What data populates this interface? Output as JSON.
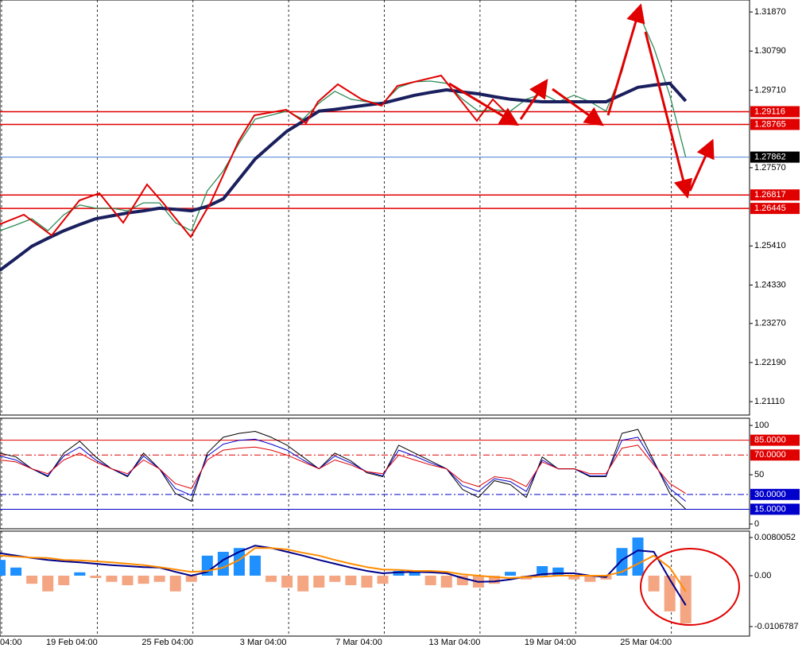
{
  "chart_data": [
    {
      "type": "line",
      "xlim": [
        0,
        47
      ],
      "ylim": [
        1.2074,
        1.322
      ],
      "yticks": [
        {
          "value": 1.3187,
          "label": "1.31870"
        },
        {
          "value": 1.3079,
          "label": "1.30790"
        },
        {
          "value": 1.2971,
          "label": "1.29710"
        },
        {
          "value": 1.2757,
          "label": "1.27570"
        },
        {
          "value": 1.2541,
          "label": "1.25410"
        },
        {
          "value": 1.2433,
          "label": "1.24330"
        },
        {
          "value": 1.2327,
          "label": "1.23270"
        },
        {
          "value": 1.2219,
          "label": "1.22190"
        },
        {
          "value": 1.2111,
          "label": "1.21110"
        }
      ],
      "x": [
        0,
        1,
        2,
        3,
        4,
        5,
        6,
        7,
        8,
        9,
        10,
        11,
        12,
        13,
        14,
        15,
        16,
        17,
        18,
        19,
        20,
        21,
        22,
        23,
        24,
        25,
        26,
        27,
        28,
        29,
        30,
        31,
        32,
        33,
        34,
        35,
        36,
        37,
        38,
        39,
        40,
        41,
        42,
        43
      ],
      "series": [
        {
          "color": "#2e8b57",
          "width": 1.3,
          "values": [
            1.2583,
            1.2599,
            1.2616,
            1.2583,
            1.2627,
            1.2654,
            1.2645,
            1.2645,
            1.2638,
            1.266,
            1.266,
            1.2605,
            1.2583,
            1.2693,
            1.2748,
            1.2825,
            1.2891,
            1.2902,
            1.2913,
            1.2891,
            1.2935,
            1.2968,
            1.2946,
            1.2939,
            1.2935,
            1.2979,
            1.2994,
            1.2996,
            1.299,
            1.2946,
            1.2913,
            1.2917,
            1.2913,
            1.2946,
            1.2961,
            1.2939,
            1.2957,
            1.2939,
            1.2913,
            1.3022,
            1.3187,
            1.3088,
            1.2957,
            1.2786
          ]
        },
        {
          "color": "#1a1f5e",
          "width": 4,
          "values": [
            1.2474,
            1.2507,
            1.254,
            1.2562,
            1.2583,
            1.26,
            1.2616,
            1.2624,
            1.2632,
            1.2638,
            1.2645,
            1.2642,
            1.2638,
            1.265,
            1.2671,
            1.2726,
            1.2781,
            1.282,
            1.2858,
            1.2885,
            1.2913,
            1.2918,
            1.2924,
            1.293,
            1.2935,
            1.2946,
            1.2957,
            1.2965,
            1.2972,
            1.2966,
            1.2961,
            1.2953,
            1.2946,
            1.2942,
            1.2939,
            1.2939,
            1.2939,
            1.2939,
            1.2939,
            1.2959,
            1.2979,
            1.2985,
            1.299,
            1.2941
          ]
        }
      ],
      "levels": [
        {
          "value": 1.29116,
          "color": "#e00000",
          "box": "#e00000"
        },
        {
          "value": 1.28765,
          "color": "#e00000",
          "box": "#e00000"
        },
        {
          "value": 1.27862,
          "color": "#4a7fd4",
          "box": "#000000"
        },
        {
          "value": 1.26817,
          "color": "#e00000",
          "box": "#e00000"
        },
        {
          "value": 1.26445,
          "color": "#e00000",
          "box": "#e00000"
        }
      ]
    },
    {
      "type": "line",
      "xlim": [
        0,
        47
      ],
      "ylim": [
        -4.8,
        107.3
      ],
      "yticks": [
        0,
        50,
        100
      ],
      "x": [
        0,
        1,
        2,
        3,
        4,
        5,
        6,
        7,
        8,
        9,
        10,
        11,
        12,
        13,
        14,
        15,
        16,
        17,
        18,
        19,
        20,
        21,
        22,
        23,
        24,
        25,
        26,
        27,
        28,
        29,
        30,
        31,
        32,
        33,
        34,
        35,
        36,
        37,
        38,
        39,
        40,
        41,
        42,
        43
      ],
      "series": [
        {
          "color": "#000000",
          "width": 1,
          "values": [
            72,
            68,
            56,
            48,
            72,
            84,
            68,
            56,
            48,
            72,
            56,
            31,
            23,
            72,
            88,
            92,
            94,
            88,
            80,
            68,
            56,
            72,
            64,
            52,
            48,
            80,
            72,
            64,
            56,
            35,
            27,
            44,
            40,
            27,
            68,
            56,
            56,
            48,
            48,
            92,
            96,
            64,
            31,
            15
          ]
        },
        {
          "color": "#0000cc",
          "width": 1,
          "values": [
            69,
            65,
            56,
            49,
            69,
            78,
            65,
            56,
            49,
            69,
            56,
            36,
            29,
            69,
            81,
            85,
            86,
            81,
            75,
            65,
            56,
            69,
            62,
            53,
            49,
            75,
            69,
            62,
            56,
            39,
            33,
            46,
            43,
            33,
            65,
            56,
            56,
            49,
            49,
            85,
            88,
            62,
            36,
            23
          ]
        },
        {
          "color": "#dd0000",
          "width": 1,
          "values": [
            65,
            63,
            56,
            51,
            65,
            72,
            63,
            56,
            51,
            65,
            56,
            41,
            36,
            65,
            75,
            77,
            78,
            75,
            70,
            63,
            56,
            65,
            60,
            53,
            51,
            70,
            65,
            60,
            56,
            43,
            38,
            48,
            46,
            38,
            63,
            56,
            56,
            51,
            51,
            77,
            80,
            60,
            41,
            31
          ]
        }
      ],
      "levels": [
        {
          "value": 85,
          "label": "85.0000",
          "color": "#e00000",
          "style": "solid"
        },
        {
          "value": 70,
          "label": "70.0000",
          "color": "#e00000",
          "style": "dashdot"
        },
        {
          "value": 30,
          "label": "30.0000",
          "color": "#0000cc",
          "style": "dashdot"
        },
        {
          "value": 15,
          "label": "15.0000",
          "color": "#0000cc",
          "style": "solid"
        }
      ]
    },
    {
      "type": "bar",
      "xlim": [
        0,
        47
      ],
      "ylim": [
        -0.01268,
        0.00934
      ],
      "yticks": [
        0.0080052,
        {
          "value": 0,
          "label": "0.00"
        },
        -0.0106787
      ],
      "xticks": [
        {
          "value": 0,
          "label": "04:00"
        },
        {
          "value": 6,
          "label": "19 Feb 04:00"
        },
        {
          "value": 12,
          "label": "25 Feb 04:00"
        },
        {
          "value": 18,
          "label": "3 Mar 04:00"
        },
        {
          "value": 24,
          "label": "7 Mar 04:00"
        },
        {
          "value": 30,
          "label": "13 Mar 04:00"
        },
        {
          "value": 36,
          "label": "19 Mar 04:00"
        },
        {
          "value": 42,
          "label": "25 Mar 04:00"
        }
      ],
      "x": [
        0,
        1,
        2,
        3,
        4,
        5,
        6,
        7,
        8,
        9,
        10,
        11,
        12,
        13,
        14,
        15,
        16,
        17,
        18,
        19,
        20,
        21,
        22,
        23,
        24,
        25,
        26,
        27,
        28,
        29,
        30,
        31,
        32,
        33,
        34,
        35,
        36,
        37,
        38,
        39,
        40,
        41,
        42,
        43
      ],
      "color": "#1e90ff",
      "negative_color": "#f4a582",
      "values": [
        0.0033,
        0.0017,
        -0.0017,
        -0.0033,
        -0.002,
        0.0007,
        -0.0005,
        -0.0013,
        -0.002,
        -0.0017,
        -0.0013,
        -0.0033,
        -0.0013,
        0.0042,
        0.005,
        0.0058,
        0.0042,
        -0.0013,
        -0.0025,
        -0.0033,
        -0.0025,
        -0.0013,
        -0.002,
        -0.0025,
        -0.0017,
        0.001,
        0.0008,
        -0.002,
        -0.0025,
        -0.002,
        -0.0025,
        -0.0017,
        0.0008,
        -0.0008,
        0.002,
        0.0017,
        -0.0008,
        -0.0013,
        -0.0008,
        0.0058,
        0.008,
        -0.0033,
        -0.0075,
        -0.01
      ],
      "lines": [
        {
          "color": "#00008b",
          "width": 2,
          "values": [
            0.0047,
            0.0042,
            0.0037,
            0.0033,
            0.003,
            0.0028,
            0.0025,
            0.0022,
            0.002,
            0.0018,
            0.0017,
            0.0008,
            0,
            0.0008,
            0.0033,
            0.005,
            0.0063,
            0.0058,
            0.005,
            0.0042,
            0.0033,
            0.0025,
            0.0017,
            0.001,
            0.0005,
            0.0007,
            0.0008,
            0.0007,
            0.0005,
            -0.0005,
            -0.0013,
            -0.0012,
            -0.0008,
            -0.0002,
            0.0003,
            0.0005,
            0.0005,
            0,
            -0.0003,
            0.0033,
            0.0053,
            0.005,
            -0.0008,
            -0.0062
          ]
        },
        {
          "color": "#ff8c00",
          "width": 2,
          "values": [
            0.0042,
            0.004,
            0.0038,
            0.0037,
            0.0033,
            0.0032,
            0.003,
            0.0028,
            0.0025,
            0.0022,
            0.0018,
            0.0013,
            0.0008,
            0.001,
            0.0017,
            0.0033,
            0.0058,
            0.0058,
            0.0055,
            0.0048,
            0.0042,
            0.0033,
            0.0025,
            0.0018,
            0.0013,
            0.0012,
            0.001,
            0.001,
            0.0008,
            0.0003,
            0,
            -0.0003,
            -0.0005,
            -0.0003,
            -0.0002,
            0,
            0,
            0,
            0,
            0.0008,
            0.0025,
            0.0042,
            0.0017,
            -0.0033
          ]
        }
      ]
    }
  ]
}
